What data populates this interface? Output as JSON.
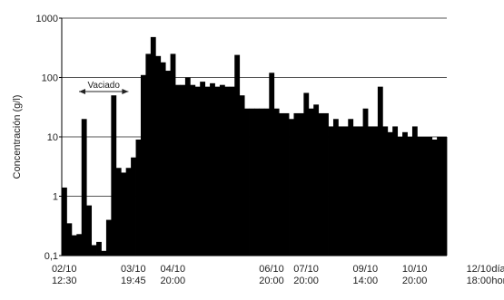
{
  "chart_data": {
    "type": "bar",
    "scale": "log",
    "ylabel": "Concentración (g/l)",
    "ylim": [
      0.1,
      1000
    ],
    "yticks": [
      "1000",
      "100",
      "10",
      "1",
      "0,1"
    ],
    "grid": true,
    "x_tick_labels": [
      {
        "top": "02/10",
        "bottom": "12:30",
        "index": 0
      },
      {
        "top": "03/10",
        "bottom": "19:45",
        "index": 14
      },
      {
        "top": "04/10",
        "bottom": "20:00",
        "index": 22
      },
      {
        "top": "06/10",
        "bottom": "20:00",
        "index": 42
      },
      {
        "top": "07/10",
        "bottom": "20:00",
        "index": 49
      },
      {
        "top": "09/10",
        "bottom": "14:00",
        "index": 61
      },
      {
        "top": "10/10",
        "bottom": "20:00",
        "index": 71
      },
      {
        "top": "12/10",
        "bottom": "18:00",
        "index": 84
      }
    ],
    "x_axis_suffix": {
      "top": "día/mes",
      "bottom": "hora:min"
    },
    "annotation": {
      "text": "Vaciado",
      "from_index": 3,
      "to_index": 13
    },
    "values": [
      1.4,
      0.35,
      0.22,
      0.23,
      20,
      0.7,
      0.15,
      0.17,
      0.12,
      0.4,
      50,
      3,
      2.5,
      3,
      4.5,
      9,
      110,
      250,
      480,
      230,
      180,
      130,
      250,
      75,
      75,
      100,
      75,
      70,
      85,
      70,
      80,
      70,
      75,
      70,
      70,
      240,
      50,
      30,
      30,
      30,
      30,
      30,
      120,
      30,
      25,
      25,
      20,
      25,
      25,
      55,
      30,
      35,
      25,
      25,
      15,
      20,
      15,
      15,
      20,
      15,
      15,
      30,
      15,
      15,
      70,
      15,
      12,
      15,
      10,
      12,
      10,
      15,
      10,
      10,
      10,
      9,
      10,
      10
    ]
  }
}
